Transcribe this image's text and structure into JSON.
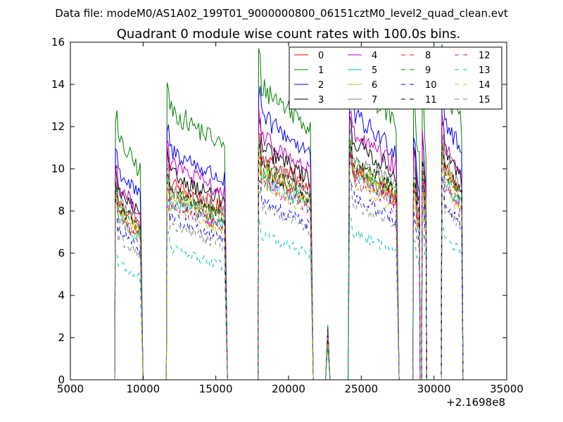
{
  "suptitle": "Data file: modeM0/AS1A02_199T01_9000000800_06151cztM0_level2_quad_clean.evt",
  "chart_data": {
    "type": "line",
    "title": "Quadrant 0 module wise count rates with 100.0s bins.",
    "xlabel": "",
    "ylabel": "",
    "x_offset_label": "+2.1698e8",
    "xlim": [
      5000,
      35000
    ],
    "ylim": [
      0,
      16
    ],
    "xticks": [
      5000,
      10000,
      15000,
      20000,
      25000,
      30000,
      35000
    ],
    "yticks": [
      0,
      2,
      4,
      6,
      8,
      10,
      12,
      14,
      16
    ],
    "legend": {
      "placement": "top-right",
      "columns": 4
    },
    "segments": [
      {
        "start": 8100,
        "end": 9800,
        "fall_end": 10000
      },
      {
        "start": 11650,
        "rise_start": 11600,
        "end": 15600,
        "fall_end": 15800
      },
      {
        "start": 17950,
        "rise_start": 17900,
        "end": 21500,
        "fall_end": 21700
      },
      {
        "start": 22600,
        "end": 22800,
        "peak_x": 22700
      },
      {
        "start": 24200,
        "rise_start": 24100,
        "end": 27400,
        "fall_end": 27600
      },
      {
        "start": 28600,
        "rise_start": 28550,
        "end": 29000,
        "fall_end": 29050
      },
      {
        "start": 29200,
        "rise_start": 29150,
        "end": 29450,
        "fall_end": 29500
      },
      {
        "start": 30550,
        "rise_start": 30500,
        "end": 31900,
        "fall_end": 32000
      }
    ],
    "series": [
      {
        "name": "0",
        "color": "#ff0000",
        "dash": "solid",
        "levels": [
          7.6,
          8.4,
          9.5,
          2.2,
          9.0,
          7.8,
          8.5,
          9.2
        ]
      },
      {
        "name": "1",
        "color": "#008000",
        "dash": "solid",
        "levels": [
          10.3,
          11.5,
          12.5,
          2.6,
          12.8,
          11.2,
          11.5,
          12.6
        ]
      },
      {
        "name": "2",
        "color": "#0000ff",
        "dash": "solid",
        "levels": [
          9.0,
          9.8,
          11.2,
          2.4,
          11.3,
          9.5,
          9.6,
          11.2
        ]
      },
      {
        "name": "3",
        "color": "#000000",
        "dash": "solid",
        "levels": [
          8.1,
          8.8,
          9.9,
          2.3,
          10.2,
          8.8,
          9.2,
          9.9
        ]
      },
      {
        "name": "4",
        "color": "#bf00bf",
        "dash": "solid",
        "levels": [
          8.3,
          9.2,
          10.3,
          2.3,
          10.5,
          9.0,
          9.4,
          10.2
        ]
      },
      {
        "name": "5",
        "color": "#00bfbf",
        "dash": "solid",
        "levels": [
          7.0,
          7.6,
          8.6,
          1.9,
          8.9,
          7.4,
          7.7,
          8.6
        ]
      },
      {
        "name": "6",
        "color": "#bfbf00",
        "dash": "solid",
        "levels": [
          7.3,
          8.0,
          9.0,
          2.1,
          9.2,
          7.8,
          8.1,
          9.0
        ]
      },
      {
        "name": "7",
        "color": "#808080",
        "dash": "solid",
        "levels": [
          7.7,
          8.2,
          9.3,
          2.2,
          9.6,
          8.2,
          8.6,
          9.3
        ]
      },
      {
        "name": "8",
        "color": "#ff0000",
        "dash": "dashed",
        "levels": [
          7.1,
          7.6,
          8.7,
          2.0,
          8.8,
          7.5,
          7.8,
          8.6
        ]
      },
      {
        "name": "9",
        "color": "#008000",
        "dash": "dashed",
        "levels": [
          7.4,
          8.0,
          9.0,
          2.1,
          9.3,
          7.9,
          8.2,
          9.0
        ]
      },
      {
        "name": "10",
        "color": "#0000ff",
        "dash": "dashed",
        "levels": [
          6.4,
          6.9,
          7.6,
          1.8,
          7.9,
          6.6,
          7.0,
          7.7
        ]
      },
      {
        "name": "11",
        "color": "#000000",
        "dash": "dashed",
        "levels": [
          7.5,
          8.1,
          9.1,
          2.1,
          9.4,
          8.1,
          8.5,
          9.1
        ]
      },
      {
        "name": "12",
        "color": "#bf00bf",
        "dash": "dashed",
        "levels": [
          6.9,
          7.5,
          8.4,
          2.0,
          8.6,
          7.3,
          7.6,
          8.4
        ]
      },
      {
        "name": "13",
        "color": "#00bfbf",
        "dash": "dashed",
        "levels": [
          5.0,
          5.6,
          6.2,
          1.5,
          6.3,
          5.6,
          5.8,
          6.2
        ]
      },
      {
        "name": "14",
        "color": "#bfbf00",
        "dash": "dashed",
        "levels": [
          6.9,
          7.4,
          8.4,
          2.0,
          8.5,
          7.2,
          7.5,
          8.3
        ]
      },
      {
        "name": "15",
        "color": "#808080",
        "dash": "dashed",
        "levels": [
          6.1,
          6.6,
          7.4,
          1.7,
          7.6,
          6.4,
          6.7,
          7.4
        ]
      }
    ]
  }
}
